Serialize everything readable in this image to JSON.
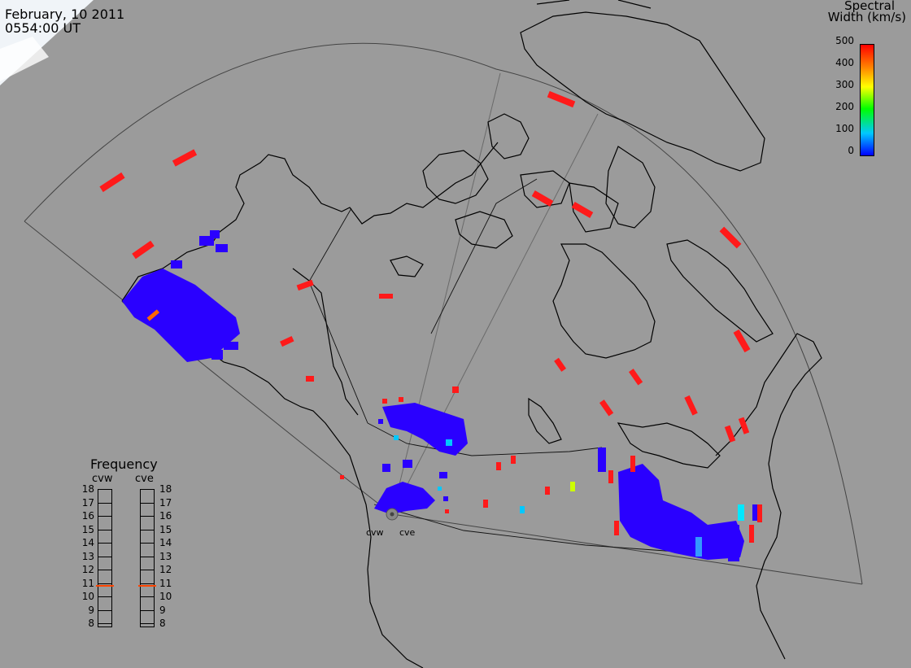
{
  "header": {
    "date": "February, 10 2011",
    "time": "0554:00 UT"
  },
  "colorbar": {
    "title_line1": "Spectral",
    "title_line2": "Width (km/s)",
    "ticks": [
      "500",
      "400",
      "300",
      "200",
      "100",
      "0"
    ],
    "colors": [
      "#0000ff",
      "#00c8ff",
      "#00ff00",
      "#ffff00",
      "#ff8000",
      "#ff0000"
    ]
  },
  "frequency_panel": {
    "title": "Frequency",
    "radars": [
      {
        "label": "cvw",
        "selected_mhz": 10.8
      },
      {
        "label": "cve",
        "selected_mhz": 10.8
      }
    ],
    "ticks": [
      "18",
      "17",
      "16",
      "15",
      "14",
      "13",
      "12",
      "11",
      "10",
      "9",
      "8"
    ]
  },
  "sites": [
    {
      "label": "cvw"
    },
    {
      "label": "cve"
    }
  ],
  "colors": {
    "background": "#9b9b9b",
    "low_width": "#2a00ff",
    "high_width": "#ff1a1a",
    "marker": "#ff4400"
  }
}
